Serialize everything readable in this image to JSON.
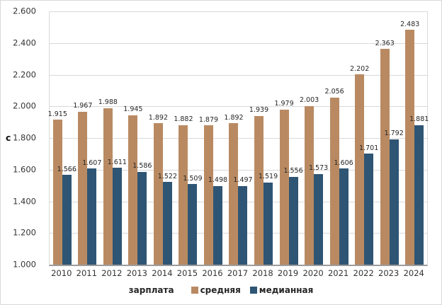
{
  "chart_data": {
    "type": "bar",
    "title": "",
    "ylabel": "с",
    "xlabel": "",
    "categories": [
      "2010",
      "2011",
      "2012",
      "2013",
      "2014",
      "2015",
      "2016",
      "2017",
      "2018",
      "2019",
      "2020",
      "2021",
      "2022",
      "2023",
      "2024"
    ],
    "series": [
      {
        "name": "средняя",
        "color": "#b98a62",
        "values": [
          1.915,
          1.967,
          1.988,
          1.945,
          1.892,
          1.882,
          1.879,
          1.892,
          1.939,
          1.979,
          2.003,
          2.056,
          2.202,
          2.363,
          2.483
        ],
        "labels": [
          "1.915",
          "1.967",
          "1.988",
          "1.945",
          "1.892",
          "1.882",
          "1.879",
          "1.892",
          "1.939",
          "1.979",
          "2.003",
          "2.056",
          "2.202",
          "2.363",
          "2.483"
        ]
      },
      {
        "name": "медианная",
        "color": "#2f5574",
        "values": [
          1.566,
          1.607,
          1.611,
          1.586,
          1.522,
          1.509,
          1.498,
          1.497,
          1.519,
          1.556,
          1.573,
          1.606,
          1.701,
          1.792,
          1.881
        ],
        "labels": [
          "1.566",
          "1.607",
          "1.611",
          "1.586",
          "1.522",
          "1.509",
          "1.498",
          "1.497",
          "1.519",
          "1.556",
          "1.573",
          "1.606",
          "1.701",
          "1.792",
          "1.881"
        ]
      }
    ],
    "ylim": [
      1.0,
      2.6
    ],
    "ytick_step": 0.2,
    "ytick_labels": [
      "1.000",
      "1.200",
      "1.400",
      "1.600",
      "1.800",
      "2.000",
      "2.200",
      "2.400",
      "2.600"
    ],
    "legend_title": "зарплата",
    "legend_position": "bottom",
    "grid": "horizontal"
  },
  "colors": {
    "gridline": "#d9d9d9",
    "axis": "#9c9c9c",
    "label_text": "#262626",
    "tick_text": "#333333"
  }
}
